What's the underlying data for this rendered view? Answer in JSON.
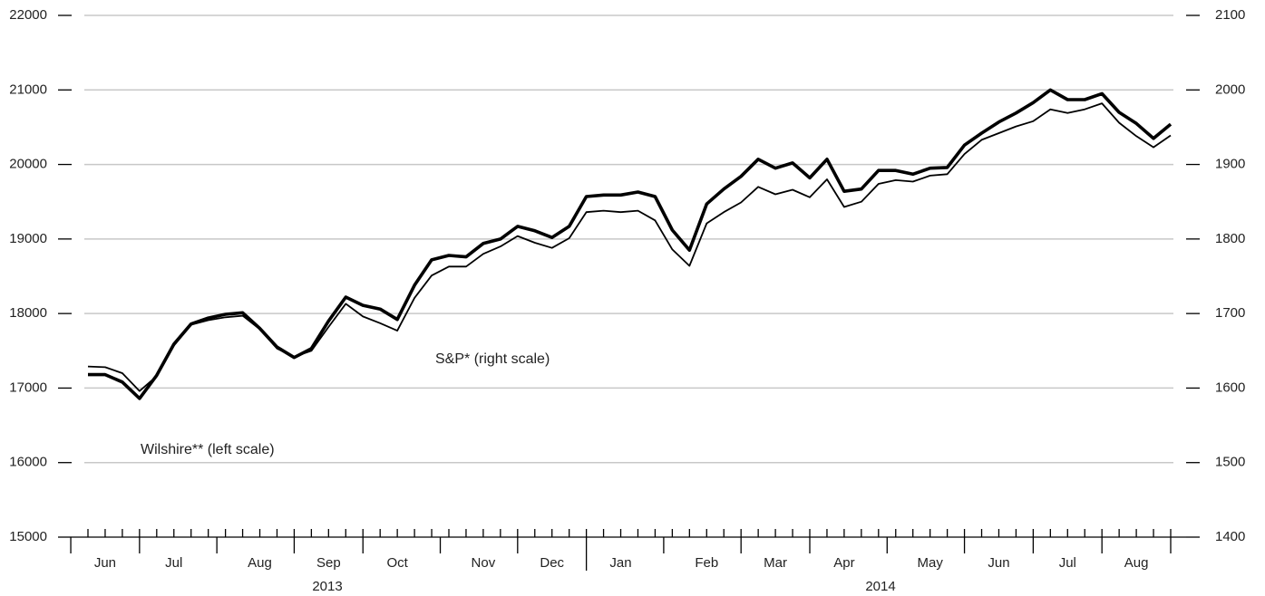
{
  "chart_data": {
    "type": "line",
    "categories": [
      null,
      "Jun",
      null,
      null,
      null,
      "Jul",
      null,
      null,
      null,
      null,
      "Aug",
      null,
      null,
      null,
      "Sep",
      null,
      null,
      null,
      "Oct",
      null,
      null,
      null,
      null,
      "Nov",
      null,
      null,
      null,
      "Dec",
      null,
      null,
      null,
      "Jan",
      null,
      null,
      null,
      null,
      "Feb",
      null,
      null,
      null,
      "Mar",
      null,
      null,
      null,
      "Apr",
      null,
      null,
      null,
      null,
      "May",
      null,
      null,
      null,
      "Jun",
      null,
      null,
      null,
      "Jul",
      null,
      null,
      null,
      "Aug",
      null,
      null
    ],
    "years": [
      "2013",
      "2014"
    ],
    "series": [
      {
        "name": "S&P* (right scale)",
        "color": "#000000",
        "axis": "y2",
        "values": [
          1618,
          1618,
          1608,
          1586,
          1617,
          1659,
          1686,
          1694,
          1699,
          1701,
          1680,
          1655,
          1641,
          1653,
          1690,
          1722,
          1711,
          1706,
          1692,
          1738,
          1772,
          1778,
          1776,
          1794,
          1800,
          1817,
          1811,
          1802,
          1817,
          1857,
          1859,
          1859,
          1863,
          1857,
          1812,
          1785,
          1847,
          1867,
          1884,
          1907,
          1895,
          1902,
          1882,
          1907,
          1864,
          1867,
          1892,
          1892,
          1887,
          1895,
          1896,
          1926,
          1942,
          1957,
          1969,
          1983,
          2000,
          1987,
          1987,
          1995,
          1970,
          1955,
          1935,
          1954
        ]
      },
      {
        "name": "Wilshire** (left scale)",
        "color": "#000000",
        "values": [
          17290,
          17280,
          17200,
          16960,
          17160,
          17570,
          17850,
          17910,
          17950,
          17970,
          17790,
          17530,
          17420,
          17500,
          17820,
          18130,
          17960,
          17870,
          17770,
          18210,
          18510,
          18630,
          18630,
          18800,
          18900,
          19040,
          18950,
          18880,
          19010,
          19360,
          19380,
          19360,
          19380,
          19250,
          18860,
          18640,
          19210,
          19360,
          19490,
          19700,
          19600,
          19660,
          19560,
          19800,
          19430,
          19500,
          19740,
          19790,
          19770,
          19850,
          19870,
          20140,
          20330,
          20420,
          20510,
          20580,
          20740,
          20690,
          20740,
          20820,
          20560,
          20380,
          20230,
          20390
        ]
      }
    ],
    "ylim": [
      15000,
      22000
    ],
    "yticks": [
      15000,
      16000,
      17000,
      18000,
      19000,
      20000,
      21000,
      22000
    ],
    "y2lim": [
      1400,
      2100
    ],
    "y2ticks": [
      1400,
      1500,
      1600,
      1700,
      1800,
      1900,
      2000,
      2100
    ],
    "grid": true
  }
}
